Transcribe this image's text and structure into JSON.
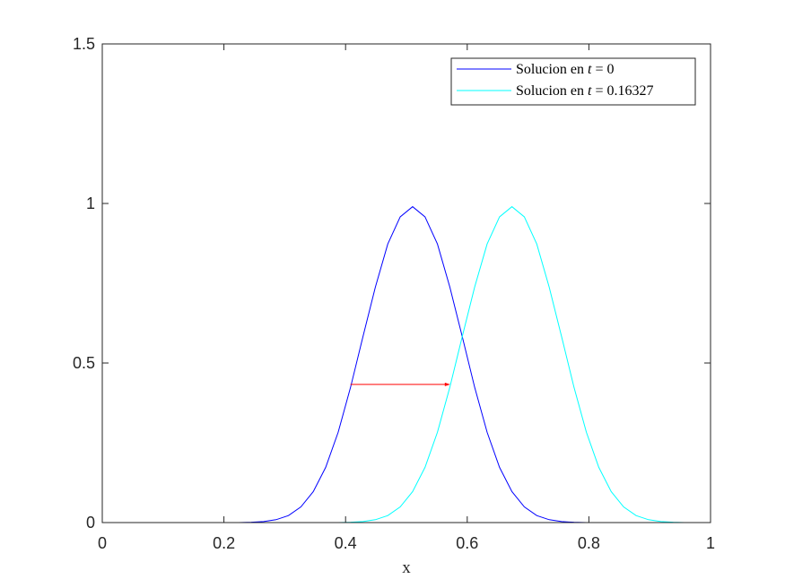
{
  "chart_data": {
    "type": "line",
    "title": "",
    "xlabel": "x",
    "ylabel": "",
    "xlim": [
      0,
      1
    ],
    "ylim": [
      0,
      1.5
    ],
    "xticks": [
      0,
      0.2,
      0.4,
      0.6,
      0.8,
      1
    ],
    "xtick_labels": [
      "0",
      "0.2",
      "0.4",
      "0.6",
      "0.8",
      "1"
    ],
    "yticks": [
      0,
      0.5,
      1,
      1.5
    ],
    "ytick_labels": [
      "0",
      "0.5",
      "1",
      "1.5"
    ],
    "grid": false,
    "legend_position": "top-right",
    "series": [
      {
        "name": "Solucion en t = 0",
        "legend_prefix": "Solucion en ",
        "legend_var": "t",
        "legend_rest": " = 0",
        "color": "#0000ff",
        "x": [
          0,
          0.0204,
          0.0408,
          0.0612,
          0.0816,
          0.102,
          0.1224,
          0.1429,
          0.1633,
          0.1837,
          0.2041,
          0.2245,
          0.2449,
          0.2653,
          0.2857,
          0.3061,
          0.3265,
          0.3469,
          0.3673,
          0.3878,
          0.4082,
          0.4286,
          0.449,
          0.4694,
          0.4898,
          0.5102,
          0.5306,
          0.551,
          0.5714,
          0.5918,
          0.6122,
          0.6327,
          0.6531,
          0.6735,
          0.6939,
          0.7143,
          0.7347,
          0.7551,
          0.7755,
          0.7959,
          0.8163,
          0.8367,
          0.8571,
          0.8776,
          0.898,
          0.9184,
          0.9388,
          0.9592,
          0.9796,
          1
        ],
        "y": [
          0,
          0,
          0,
          0,
          0,
          0,
          0,
          0,
          0,
          0,
          0,
          0,
          0.001,
          0.003,
          0.009,
          0.022,
          0.049,
          0.097,
          0.173,
          0.283,
          0.424,
          0.583,
          0.738,
          0.873,
          0.958,
          0.99,
          0.958,
          0.873,
          0.738,
          0.583,
          0.424,
          0.283,
          0.173,
          0.097,
          0.049,
          0.022,
          0.009,
          0.003,
          0.001,
          0,
          0,
          0,
          0,
          0,
          0,
          0,
          0,
          0,
          0,
          0
        ]
      },
      {
        "name": "Solucion en t = 0.16327",
        "legend_prefix": "Solucion en ",
        "legend_var": "t",
        "legend_rest": " = 0.16327",
        "color": "#00ffff",
        "x": [
          0,
          0.0204,
          0.0408,
          0.0612,
          0.0816,
          0.102,
          0.1224,
          0.1429,
          0.1633,
          0.1837,
          0.2041,
          0.2245,
          0.2449,
          0.2653,
          0.2857,
          0.3061,
          0.3265,
          0.3469,
          0.3673,
          0.3878,
          0.4082,
          0.4286,
          0.449,
          0.4694,
          0.4898,
          0.5102,
          0.5306,
          0.551,
          0.5714,
          0.5918,
          0.6122,
          0.6327,
          0.6531,
          0.6735,
          0.6939,
          0.7143,
          0.7347,
          0.7551,
          0.7755,
          0.7959,
          0.8163,
          0.8367,
          0.8571,
          0.8776,
          0.898,
          0.9184,
          0.9388,
          0.9592,
          0.9796,
          1
        ],
        "y": [
          0,
          0,
          0,
          0,
          0,
          0,
          0,
          0,
          0,
          0,
          0,
          0,
          0,
          0,
          0,
          0,
          0,
          0,
          0,
          0,
          0.001,
          0.003,
          0.009,
          0.022,
          0.049,
          0.097,
          0.173,
          0.283,
          0.424,
          0.583,
          0.738,
          0.873,
          0.958,
          0.99,
          0.958,
          0.873,
          0.738,
          0.583,
          0.424,
          0.283,
          0.173,
          0.097,
          0.049,
          0.022,
          0.009,
          0.003,
          0.001,
          0,
          0,
          0
        ]
      }
    ],
    "annotations": [
      {
        "type": "arrow",
        "color": "#ff0000",
        "x_start": 0.408,
        "x_end": 0.572,
        "y": 0.433
      }
    ]
  }
}
